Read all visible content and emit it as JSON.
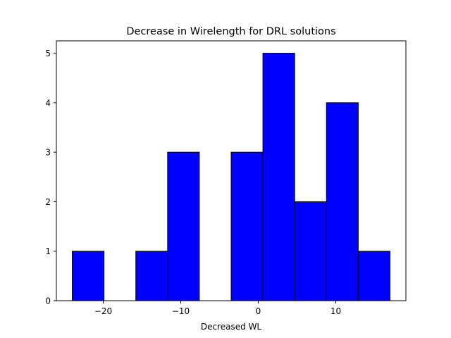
{
  "chart_data": {
    "type": "bar",
    "title": "Decrease in Wirelength for DRL solutions",
    "xlabel": "Decreased WL",
    "ylabel": "",
    "bins": [
      {
        "x0": -24.0,
        "x1": -19.9,
        "count": 1
      },
      {
        "x0": -19.9,
        "x1": -15.8,
        "count": 0
      },
      {
        "x0": -15.8,
        "x1": -11.7,
        "count": 1
      },
      {
        "x0": -11.7,
        "x1": -7.6,
        "count": 3
      },
      {
        "x0": -7.6,
        "x1": -3.5,
        "count": 0
      },
      {
        "x0": -3.5,
        "x1": 0.6,
        "count": 3
      },
      {
        "x0": 0.6,
        "x1": 4.7,
        "count": 5
      },
      {
        "x0": 4.7,
        "x1": 8.8,
        "count": 2
      },
      {
        "x0": 8.8,
        "x1": 12.9,
        "count": 4
      },
      {
        "x0": 12.9,
        "x1": 17.0,
        "count": 1
      }
    ],
    "xlim": [
      -26.05,
      19.05
    ],
    "ylim": [
      0,
      5.25
    ],
    "xticks": [
      -20,
      -10,
      0,
      10
    ],
    "xtick_labels": [
      "−20",
      "−10",
      "0",
      "10"
    ],
    "yticks": [
      0,
      1,
      2,
      3,
      4,
      5
    ],
    "ytick_labels": [
      "0",
      "1",
      "2",
      "3",
      "4",
      "5"
    ],
    "grid": false,
    "legend": "none",
    "bar_color": "#0000ff",
    "edge_color": "#000000"
  }
}
